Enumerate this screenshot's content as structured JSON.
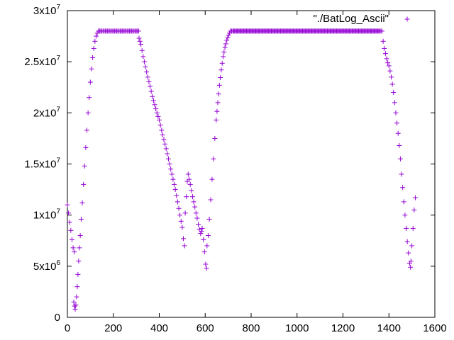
{
  "chart_data": {
    "type": "scatter",
    "marker": "+",
    "series": [
      {
        "name": "\"./BatLog_Ascii\"",
        "color": "#9400d3",
        "segments": [
          [
            [
              0,
              11000000
            ],
            [
              5,
              10200000
            ],
            [
              10,
              9300000
            ],
            [
              15,
              8500000
            ],
            [
              20,
              7600000
            ],
            [
              25,
              6800000
            ],
            [
              30,
              6400000
            ]
          ],
          [
            [
              28,
              1500000
            ],
            [
              31,
              1100000
            ],
            [
              34,
              800000
            ],
            [
              37,
              1200000
            ],
            [
              40,
              2000000
            ],
            [
              43,
              3000000
            ],
            [
              46,
              4200000
            ],
            [
              49,
              5500000
            ],
            [
              52,
              6800000
            ],
            [
              56,
              8000000
            ],
            [
              60,
              9600000
            ],
            [
              65,
              11200000
            ],
            [
              70,
              13000000
            ],
            [
              75,
              14800000
            ],
            [
              80,
              16600000
            ],
            [
              85,
              18300000
            ],
            [
              90,
              20000000
            ],
            [
              95,
              21500000
            ],
            [
              100,
              23000000
            ],
            [
              105,
              24300000
            ],
            [
              110,
              25400000
            ],
            [
              115,
              26300000
            ],
            [
              120,
              27000000
            ],
            [
              125,
              27500000
            ],
            [
              130,
              27800000
            ],
            [
              135,
              28000000
            ],
            [
              140,
              28000000
            ],
            [
              150,
              28000000
            ],
            [
              160,
              28000000
            ],
            [
              170,
              28000000
            ],
            [
              180,
              28000000
            ],
            [
              190,
              28000000
            ],
            [
              200,
              28000000
            ],
            [
              210,
              28000000
            ],
            [
              220,
              28000000
            ],
            [
              230,
              28000000
            ],
            [
              240,
              28000000
            ],
            [
              250,
              28000000
            ],
            [
              260,
              28000000
            ],
            [
              270,
              28000000
            ],
            [
              280,
              28000000
            ],
            [
              290,
              28000000
            ],
            [
              300,
              28000000
            ],
            [
              310,
              28000000
            ]
          ],
          [
            [
              312,
              27300000
            ],
            [
              320,
              26700000
            ],
            [
              330,
              25500000
            ],
            [
              340,
              24500000
            ],
            [
              350,
              23500000
            ],
            [
              360,
              22600000
            ],
            [
              370,
              21600000
            ],
            [
              380,
              20800000
            ],
            [
              390,
              20000000
            ],
            [
              400,
              19300000
            ],
            [
              410,
              18300000
            ],
            [
              420,
              17400000
            ],
            [
              430,
              16500000
            ],
            [
              440,
              15500000
            ],
            [
              450,
              14500000
            ],
            [
              460,
              13500000
            ],
            [
              470,
              12500000
            ],
            [
              480,
              11300000
            ],
            [
              490,
              10000000
            ],
            [
              500,
              8800000
            ],
            [
              505,
              7700000
            ],
            [
              510,
              7000000
            ]
          ],
          [
            [
              513,
              10200000
            ],
            [
              518,
              11800000
            ],
            [
              522,
              13300000
            ],
            [
              526,
              14000000
            ],
            [
              530,
              13500000
            ],
            [
              535,
              13000000
            ],
            [
              540,
              12400000
            ],
            [
              545,
              11800000
            ],
            [
              550,
              11300000
            ],
            [
              555,
              10800000
            ],
            [
              560,
              10200000
            ],
            [
              565,
              9700000
            ],
            [
              570,
              9100000
            ],
            [
              575,
              8600000
            ],
            [
              580,
              8200000
            ],
            [
              584,
              8400000
            ]
          ],
          [
            [
              587,
              8700000
            ],
            [
              592,
              7600000
            ],
            [
              597,
              6400000
            ],
            [
              602,
              5200000
            ],
            [
              606,
              4800000
            ]
          ],
          [
            [
              608,
              7000000
            ],
            [
              613,
              8000000
            ],
            [
              618,
              9600000
            ],
            [
              624,
              11500000
            ],
            [
              630,
              13500000
            ],
            [
              636,
              15500000
            ],
            [
              642,
              17500000
            ],
            [
              648,
              19300000
            ],
            [
              655,
              21000000
            ],
            [
              662,
              22700000
            ],
            [
              670,
              24200000
            ],
            [
              678,
              25500000
            ],
            [
              686,
              26400000
            ],
            [
              694,
              27100000
            ],
            [
              702,
              27600000
            ],
            [
              710,
              28000000
            ],
            [
              720,
              28000000
            ],
            [
              740,
              28000000
            ],
            [
              760,
              28000000
            ],
            [
              780,
              28000000
            ],
            [
              800,
              28000000
            ],
            [
              820,
              28000000
            ],
            [
              840,
              28000000
            ],
            [
              860,
              28000000
            ],
            [
              880,
              28000000
            ],
            [
              900,
              28000000
            ],
            [
              920,
              28000000
            ],
            [
              940,
              28000000
            ],
            [
              960,
              28000000
            ],
            [
              980,
              28000000
            ],
            [
              1000,
              28000000
            ],
            [
              1020,
              28000000
            ],
            [
              1040,
              28000000
            ],
            [
              1060,
              28000000
            ],
            [
              1080,
              28000000
            ],
            [
              1100,
              28000000
            ],
            [
              1120,
              28000000
            ],
            [
              1140,
              28000000
            ],
            [
              1160,
              28000000
            ],
            [
              1180,
              28000000
            ],
            [
              1200,
              28000000
            ],
            [
              1220,
              28000000
            ],
            [
              1240,
              28000000
            ],
            [
              1260,
              28000000
            ],
            [
              1280,
              28000000
            ],
            [
              1300,
              28000000
            ],
            [
              1320,
              28000000
            ],
            [
              1340,
              28000000
            ],
            [
              1360,
              28000000
            ],
            [
              1370,
              28000000
            ]
          ],
          [
            [
              1375,
              27000000
            ],
            [
              1380,
              26300000
            ],
            [
              1385,
              25800000
            ],
            [
              1390,
              25300000
            ],
            [
              1395,
              24900000
            ],
            [
              1400,
              24600000
            ],
            [
              1405,
              24100000
            ],
            [
              1410,
              23500000
            ],
            [
              1415,
              22800000
            ],
            [
              1420,
              22000000
            ],
            [
              1425,
              21000000
            ],
            [
              1430,
              20000000
            ],
            [
              1435,
              19000000
            ],
            [
              1440,
              18000000
            ],
            [
              1445,
              16800000
            ],
            [
              1450,
              15500000
            ],
            [
              1455,
              14000000
            ],
            [
              1460,
              12700000
            ],
            [
              1465,
              11300000
            ],
            [
              1470,
              10000000
            ],
            [
              1475,
              8700000
            ],
            [
              1480,
              7400000
            ],
            [
              1485,
              6300000
            ],
            [
              1490,
              5300000
            ],
            [
              1494,
              4900000
            ]
          ],
          [
            [
              1496,
              5500000
            ],
            [
              1500,
              7000000
            ],
            [
              1505,
              8700000
            ],
            [
              1510,
              10500000
            ],
            [
              1515,
              11700000
            ]
          ]
        ]
      }
    ],
    "xlim": [
      0,
      1600
    ],
    "ylim": [
      0,
      30000000
    ],
    "xticks": [
      0,
      200,
      400,
      600,
      800,
      1000,
      1200,
      1400,
      1600
    ],
    "xtick_labels": [
      "0",
      "200",
      "400",
      "600",
      "800",
      "1000",
      "1200",
      "1400",
      "1600"
    ],
    "yticks": [
      0,
      5000000,
      10000000,
      15000000,
      20000000,
      25000000,
      30000000
    ],
    "ytick_labels": [
      {
        "mant": "0",
        "exp": ""
      },
      {
        "mant": "5x10",
        "exp": "6"
      },
      {
        "mant": "1x10",
        "exp": "7"
      },
      {
        "mant": "1.5x10",
        "exp": "7"
      },
      {
        "mant": "2x10",
        "exp": "7"
      },
      {
        "mant": "2.5x10",
        "exp": "7"
      },
      {
        "mant": "3x10",
        "exp": "7"
      }
    ],
    "legend_position": "top-right",
    "grid": false,
    "title": "",
    "xlabel": "",
    "ylabel": ""
  }
}
